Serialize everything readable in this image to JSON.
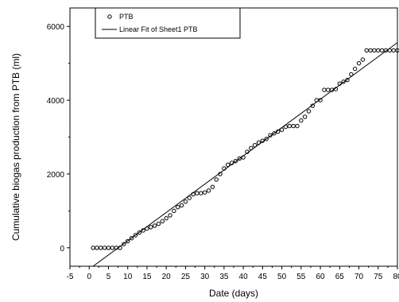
{
  "chart_data": {
    "type": "scatter",
    "title": "",
    "xlabel": "Date (days)",
    "ylabel": "Cumulative biogas production from PTB (ml)",
    "xlim": [
      -5,
      80
    ],
    "ylim": [
      -500,
      6500
    ],
    "x_ticks": [
      -5,
      0,
      5,
      10,
      15,
      20,
      25,
      30,
      35,
      40,
      45,
      50,
      55,
      60,
      65,
      70,
      75,
      80
    ],
    "y_ticks": [
      0,
      2000,
      4000,
      6000
    ],
    "legend_position": "top-left",
    "grid": false,
    "series": [
      {
        "name": "PTB",
        "kind": "scatter",
        "marker": "open-circle",
        "points": [
          [
            1,
            0
          ],
          [
            2,
            0
          ],
          [
            3,
            0
          ],
          [
            4,
            0
          ],
          [
            5,
            0
          ],
          [
            6,
            0
          ],
          [
            7,
            0
          ],
          [
            8,
            0
          ],
          [
            9,
            100
          ],
          [
            10,
            180
          ],
          [
            11,
            260
          ],
          [
            12,
            340
          ],
          [
            13,
            410
          ],
          [
            14,
            470
          ],
          [
            15,
            520
          ],
          [
            16,
            560
          ],
          [
            17,
            600
          ],
          [
            18,
            650
          ],
          [
            19,
            720
          ],
          [
            20,
            800
          ],
          [
            21,
            880
          ],
          [
            22,
            1000
          ],
          [
            23,
            1100
          ],
          [
            24,
            1150
          ],
          [
            25,
            1250
          ],
          [
            26,
            1350
          ],
          [
            27,
            1450
          ],
          [
            28,
            1480
          ],
          [
            29,
            1480
          ],
          [
            30,
            1500
          ],
          [
            31,
            1550
          ],
          [
            32,
            1650
          ],
          [
            33,
            1850
          ],
          [
            34,
            2000
          ],
          [
            35,
            2150
          ],
          [
            36,
            2250
          ],
          [
            37,
            2300
          ],
          [
            38,
            2350
          ],
          [
            39,
            2420
          ],
          [
            40,
            2450
          ],
          [
            41,
            2600
          ],
          [
            42,
            2700
          ],
          [
            43,
            2780
          ],
          [
            44,
            2850
          ],
          [
            45,
            2900
          ],
          [
            46,
            2950
          ],
          [
            47,
            3050
          ],
          [
            48,
            3100
          ],
          [
            49,
            3150
          ],
          [
            50,
            3200
          ],
          [
            51,
            3280
          ],
          [
            52,
            3300
          ],
          [
            53,
            3300
          ],
          [
            54,
            3300
          ],
          [
            55,
            3450
          ],
          [
            56,
            3550
          ],
          [
            57,
            3700
          ],
          [
            58,
            3850
          ],
          [
            59,
            4000
          ],
          [
            60,
            4000
          ],
          [
            61,
            4280
          ],
          [
            62,
            4280
          ],
          [
            63,
            4280
          ],
          [
            64,
            4300
          ],
          [
            65,
            4450
          ],
          [
            66,
            4500
          ],
          [
            67,
            4550
          ],
          [
            68,
            4700
          ],
          [
            69,
            4850
          ],
          [
            70,
            5000
          ],
          [
            71,
            5100
          ],
          [
            72,
            5350
          ],
          [
            73,
            5350
          ],
          [
            74,
            5350
          ],
          [
            75,
            5350
          ],
          [
            76,
            5350
          ],
          [
            77,
            5350
          ],
          [
            78,
            5350
          ],
          [
            79,
            5350
          ],
          [
            80,
            5350
          ]
        ]
      },
      {
        "name": "Linear Fit of Sheet1 PTB",
        "kind": "line",
        "points": [
          [
            1,
            -500
          ],
          [
            80,
            5560
          ]
        ]
      }
    ]
  }
}
